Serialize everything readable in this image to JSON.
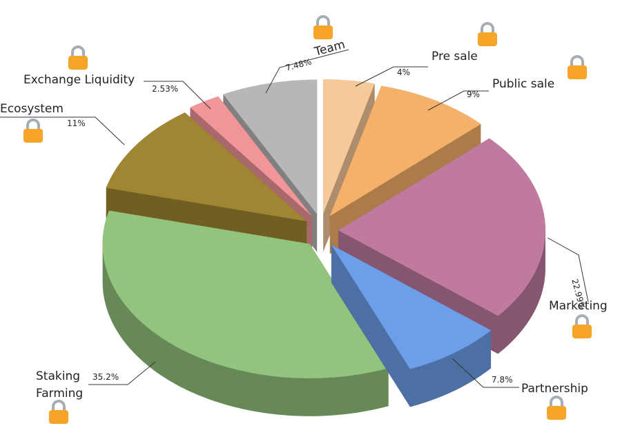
{
  "chart_data": {
    "type": "pie",
    "categories": [
      "Pre sale",
      "Public sale",
      "Marketing",
      "Partnership",
      "Staking Farming",
      "Ecosystem",
      "Exchange Liquidity",
      "Team"
    ],
    "values": [
      4,
      9,
      22.99,
      7.8,
      35.2,
      11,
      2.53,
      7.48
    ],
    "value_labels": [
      "4%",
      "9%",
      "22.99%",
      "7.8%",
      "35.2%",
      "11%",
      "2.53%",
      "7.48%"
    ],
    "colors": [
      "#f7c99a",
      "#f5b06a",
      "#c07a9e",
      "#6d9eea",
      "#93c47d",
      "#a08632",
      "#f19599",
      "#b7b7b7"
    ]
  }
}
